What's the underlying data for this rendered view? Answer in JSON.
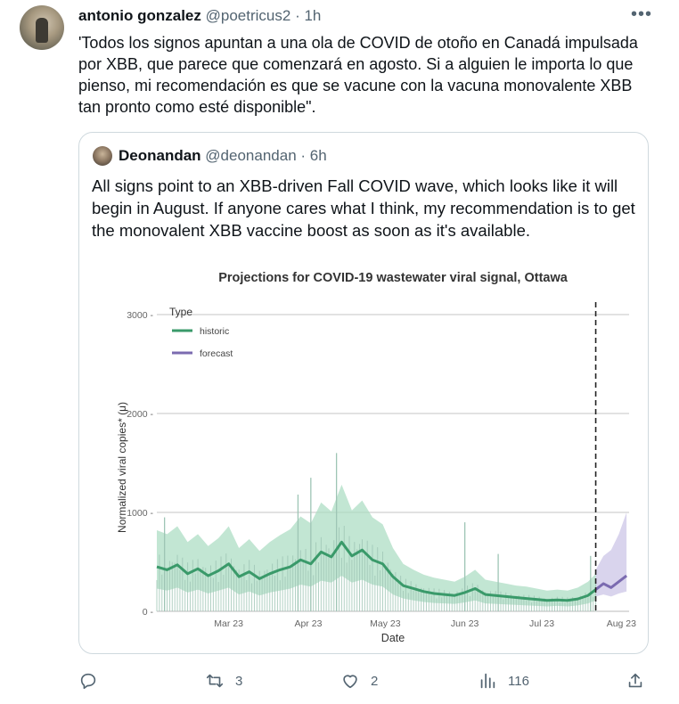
{
  "tweet": {
    "author_name": "antonio gonzalez",
    "author_handle": "@poetricus2",
    "separator": "·",
    "time": "1h",
    "text": "'Todos los signos apuntan a una ola de COVID de otoño en Canadá impulsada por XBB, que parece que comenzará en agosto. Si a alguien le importa lo que pienso, mi recomendación es que se vacune con la vacuna monovalente XBB tan pronto como esté disponible\".",
    "more_icon": "more-horizontal-icon"
  },
  "quoted": {
    "author_name": "Deonandan",
    "author_handle": "@deonandan",
    "separator": "·",
    "time": "6h",
    "text": "All signs point to an XBB-driven Fall COVID wave, which looks like it will begin in August. If anyone cares what I think, my recommendation is to get the monovalent XBB vaccine boost as soon as it's available."
  },
  "chart_data": {
    "type": "line",
    "title": "Projections for COVID-19 wastewater viral signal, Ottawa",
    "xlabel": "Date",
    "ylabel": "Normalized viral copies* (μ)",
    "ylim": [
      0,
      3000
    ],
    "yticks": [
      0,
      1000,
      2000,
      3000
    ],
    "xticks": [
      "Mar 23",
      "Apr 23",
      "May 23",
      "Jun 23",
      "Jul 23",
      "Aug 23"
    ],
    "x_range": [
      "2023-02-01",
      "2023-08-04"
    ],
    "legend_title": "Type",
    "legend_placement": "top-left",
    "grid": true,
    "forecast_start": "2023-07-22",
    "colors": {
      "historic": "#3a9a6a",
      "forecast": "#7b6bb0",
      "band_historic": "#a8dcc0",
      "band_forecast": "#c9c2e6",
      "raw": "#9ec5b5"
    },
    "series": [
      {
        "name": "historic",
        "x": [
          "2023-02-01",
          "2023-02-05",
          "2023-02-09",
          "2023-02-13",
          "2023-02-17",
          "2023-02-21",
          "2023-02-25",
          "2023-03-01",
          "2023-03-05",
          "2023-03-09",
          "2023-03-13",
          "2023-03-17",
          "2023-03-21",
          "2023-03-25",
          "2023-03-29",
          "2023-04-02",
          "2023-04-06",
          "2023-04-10",
          "2023-04-14",
          "2023-04-18",
          "2023-04-22",
          "2023-04-26",
          "2023-04-30",
          "2023-05-04",
          "2023-05-08",
          "2023-05-12",
          "2023-05-16",
          "2023-05-20",
          "2023-05-24",
          "2023-05-28",
          "2023-06-01",
          "2023-06-05",
          "2023-06-09",
          "2023-06-13",
          "2023-06-17",
          "2023-06-21",
          "2023-06-25",
          "2023-06-29",
          "2023-07-03",
          "2023-07-07",
          "2023-07-11",
          "2023-07-15",
          "2023-07-19",
          "2023-07-22"
        ],
        "values": [
          450,
          420,
          470,
          380,
          430,
          360,
          410,
          480,
          350,
          400,
          330,
          380,
          420,
          450,
          520,
          480,
          600,
          550,
          700,
          560,
          620,
          520,
          480,
          350,
          260,
          230,
          200,
          180,
          170,
          160,
          190,
          230,
          170,
          160,
          150,
          140,
          130,
          120,
          110,
          115,
          110,
          125,
          160,
          220
        ],
        "lower": [
          230,
          210,
          240,
          190,
          220,
          180,
          210,
          240,
          170,
          200,
          160,
          190,
          210,
          230,
          270,
          250,
          310,
          290,
          360,
          290,
          320,
          270,
          250,
          170,
          130,
          110,
          95,
          85,
          80,
          75,
          90,
          110,
          80,
          75,
          70,
          65,
          60,
          55,
          50,
          55,
          50,
          60,
          80,
          110
        ],
        "upper": [
          820,
          780,
          860,
          700,
          780,
          660,
          740,
          860,
          640,
          730,
          610,
          700,
          770,
          830,
          960,
          890,
          1100,
          1010,
          1280,
          1020,
          1120,
          950,
          880,
          640,
          480,
          420,
          370,
          340,
          320,
          300,
          350,
          420,
          320,
          300,
          280,
          260,
          250,
          230,
          210,
          220,
          210,
          240,
          300,
          380
        ]
      },
      {
        "name": "forecast",
        "x": [
          "2023-07-22",
          "2023-07-25",
          "2023-07-28",
          "2023-07-31",
          "2023-08-03"
        ],
        "values": [
          220,
          280,
          240,
          300,
          360
        ],
        "lower": [
          150,
          170,
          150,
          180,
          200
        ],
        "upper": [
          420,
          560,
          620,
          780,
          1000
        ]
      }
    ],
    "raw_spikes": [
      {
        "x": "2023-04-12",
        "value": 1600
      },
      {
        "x": "2023-04-02",
        "value": 1350
      },
      {
        "x": "2023-03-28",
        "value": 1180
      },
      {
        "x": "2023-02-04",
        "value": 950
      },
      {
        "x": "2023-06-01",
        "value": 900
      },
      {
        "x": "2023-06-14",
        "value": 580
      },
      {
        "x": "2023-07-20",
        "value": 560
      }
    ]
  },
  "actions": {
    "reply_icon": "reply-icon",
    "retweet_icon": "retweet-icon",
    "retweet_count": "3",
    "like_icon": "heart-icon",
    "like_count": "2",
    "views_icon": "analytics-icon",
    "views_count": "116",
    "share_icon": "share-icon"
  }
}
